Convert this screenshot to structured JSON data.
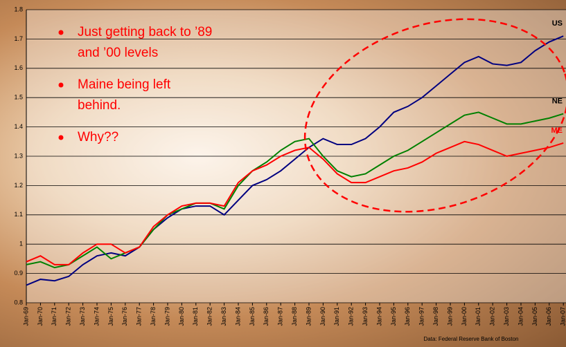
{
  "chart_data": {
    "type": "line",
    "categories": [
      "Jan-69",
      "Jan-70",
      "Jan-71",
      "Jan-72",
      "Jan-73",
      "Jan-74",
      "Jan-75",
      "Jan-76",
      "Jan-77",
      "Jan-78",
      "Jan-79",
      "Jan-80",
      "Jan-81",
      "Jan-82",
      "Jan-83",
      "Jan-84",
      "Jan-85",
      "Jan-86",
      "Jan-87",
      "Jan-88",
      "Jan-89",
      "Jan-90",
      "Jan-91",
      "Jan-92",
      "Jan-93",
      "Jan-94",
      "Jan-95",
      "Jan-96",
      "Jan-97",
      "Jan-98",
      "Jan-99",
      "Jan-00",
      "Jan-01",
      "Jan-02",
      "Jan-03",
      "Jan-04",
      "Jan-05",
      "Jan-06",
      "Jan-07"
    ],
    "series": [
      {
        "name": "US",
        "color": "#000080",
        "values": [
          0.86,
          0.88,
          0.875,
          0.89,
          0.93,
          0.96,
          0.97,
          0.96,
          0.99,
          1.05,
          1.09,
          1.12,
          1.13,
          1.13,
          1.1,
          1.15,
          1.2,
          1.22,
          1.25,
          1.29,
          1.33,
          1.36,
          1.34,
          1.34,
          1.36,
          1.4,
          1.45,
          1.47,
          1.5,
          1.54,
          1.58,
          1.62,
          1.64,
          1.615,
          1.61,
          1.62,
          1.66,
          1.69,
          1.71
        ]
      },
      {
        "name": "NE",
        "color": "#008000",
        "values": [
          0.93,
          0.94,
          0.92,
          0.93,
          0.96,
          0.99,
          0.95,
          0.97,
          0.99,
          1.05,
          1.1,
          1.12,
          1.14,
          1.14,
          1.12,
          1.2,
          1.25,
          1.28,
          1.32,
          1.35,
          1.36,
          1.3,
          1.25,
          1.23,
          1.24,
          1.27,
          1.3,
          1.32,
          1.35,
          1.38,
          1.41,
          1.44,
          1.45,
          1.43,
          1.41,
          1.41,
          1.42,
          1.43,
          1.445
        ]
      },
      {
        "name": "ME",
        "color": "#ff0000",
        "values": [
          0.94,
          0.96,
          0.93,
          0.93,
          0.97,
          1.0,
          1.0,
          0.97,
          0.99,
          1.06,
          1.1,
          1.13,
          1.14,
          1.14,
          1.13,
          1.21,
          1.25,
          1.27,
          1.3,
          1.32,
          1.33,
          1.29,
          1.24,
          1.21,
          1.21,
          1.23,
          1.25,
          1.26,
          1.28,
          1.31,
          1.33,
          1.35,
          1.34,
          1.32,
          1.3,
          1.31,
          1.32,
          1.33,
          1.345
        ]
      }
    ],
    "ylim": [
      0.8,
      1.8
    ],
    "yticks": [
      0.8,
      0.9,
      1,
      1.1,
      1.2,
      1.3,
      1.4,
      1.5,
      1.6,
      1.7,
      1.8
    ],
    "grid": true,
    "bullets": [
      [
        "Just getting back to ’89",
        "and ’00 levels"
      ],
      [
        "Maine being left",
        "behind."
      ],
      [
        "Why??"
      ]
    ],
    "source": "Data:  Federal Reserve Bank of Boston"
  }
}
